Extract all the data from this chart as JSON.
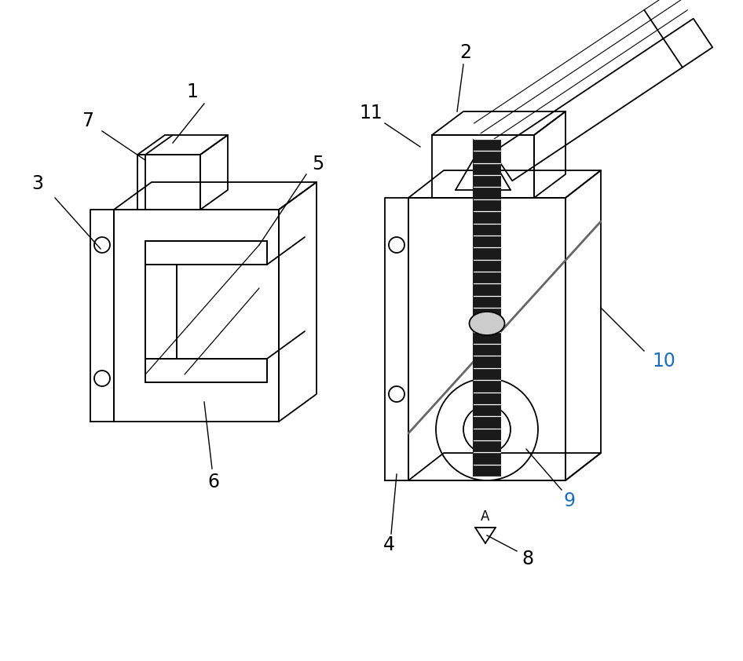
{
  "bg_color": "#ffffff",
  "line_color": "#000000",
  "blue_label_color": "#1a6fbd",
  "fig_width": 9.46,
  "fig_height": 8.42,
  "dpi": 100
}
